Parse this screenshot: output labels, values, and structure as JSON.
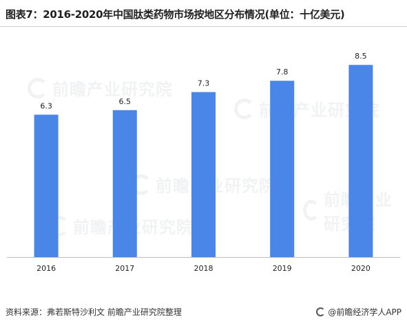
{
  "title": "图表7：2016-2020年中国肽类药物市场按地区分布情况(单位：十亿美元)",
  "watermark": "前瞻产业研究院",
  "footer": {
    "source": "资料来源：弗若斯特沙利文 前瞻产业研究院整理",
    "brand": "@前瞻经济学人APP"
  },
  "colors": {
    "bar": "#4a86e8",
    "axis": "#bfbfbf"
  },
  "chart_data": {
    "type": "bar",
    "categories": [
      "2016",
      "2017",
      "2018",
      "2019",
      "2020"
    ],
    "values": [
      6.3,
      6.5,
      7.3,
      7.8,
      8.5
    ],
    "data_labels": [
      "6.3",
      "6.5",
      "7.3",
      "7.8",
      "8.5"
    ],
    "ylim": [
      0,
      9.3
    ],
    "grid": false,
    "legend": "none"
  }
}
